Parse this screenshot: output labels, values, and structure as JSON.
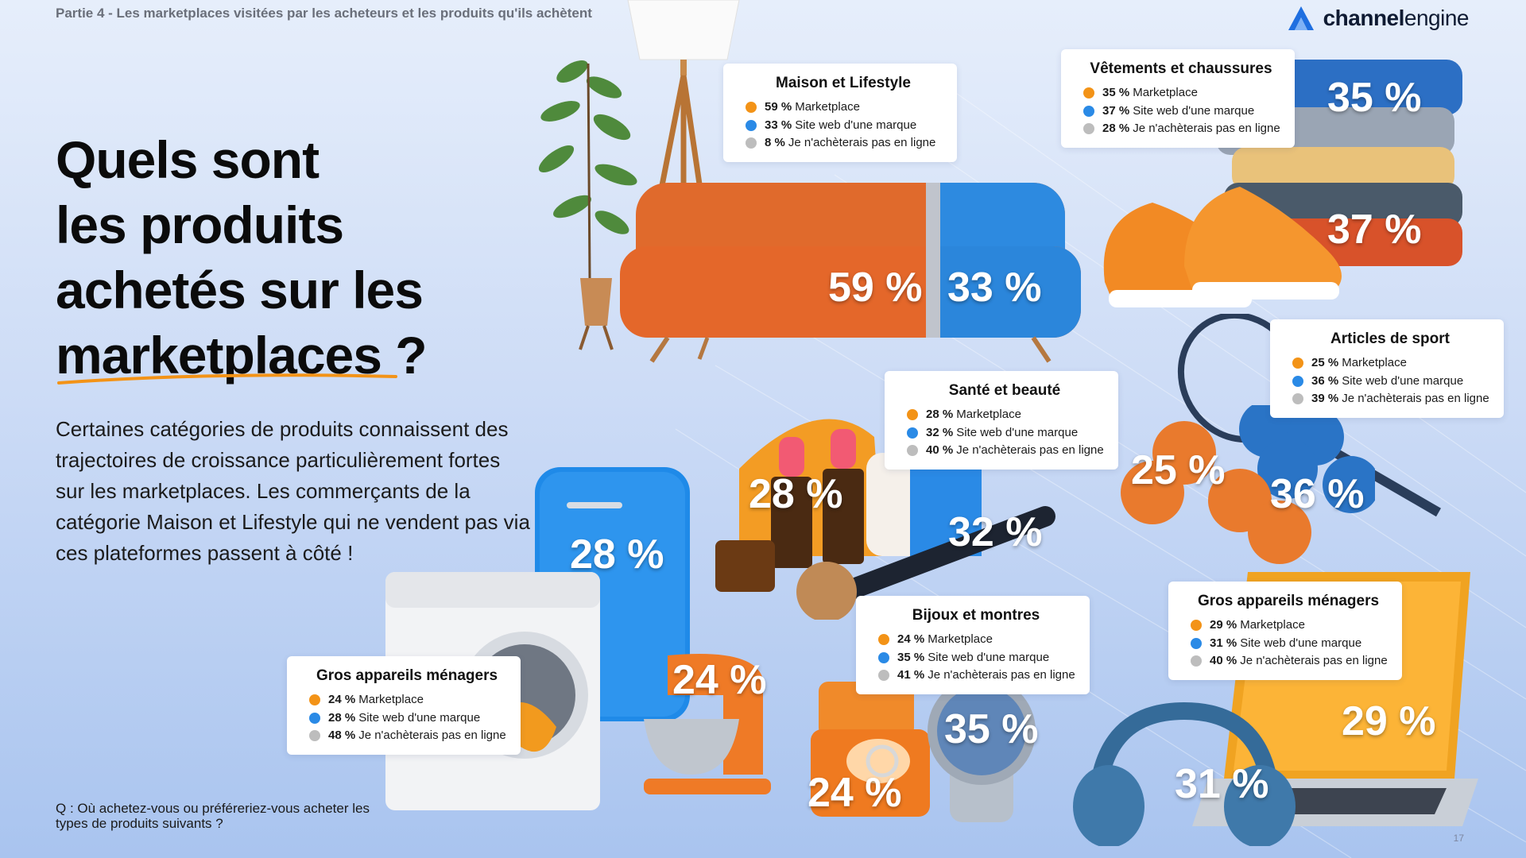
{
  "header": {
    "breadcrumb": "Partie 4 - Les marketplaces visitées par les acheteurs et les produits qu'ils achètent",
    "logo_bold": "channel",
    "logo_light": "engine"
  },
  "headline": {
    "line1": "Quels sont",
    "line2": "les produits",
    "line3": "achetés sur les",
    "line4": "marketplaces ?"
  },
  "intro": "Certaines catégories de produits connaissent des trajectoires de croissance particulièrement fortes sur les marketplaces. Les commerçants de la catégorie Maison et Lifestyle qui ne vendent pas via ces plateformes passent à côté !",
  "footer": {
    "question": "Q : Où achetez-vous ou préféreriez-vous acheter les types de produits suivants ?",
    "page_number": "17"
  },
  "colors": {
    "marketplace": "#f39317",
    "brand_site": "#2a8ae6",
    "not_online": "#bdbdbd"
  },
  "cards": {
    "maison": {
      "title": "Maison et Lifestyle",
      "rows": [
        {
          "value": "59 %",
          "label": "Marketplace"
        },
        {
          "value": "33 %",
          "label": "Site web d'une marque"
        },
        {
          "value": "8 %",
          "label": "Je n'achèterais pas en ligne"
        }
      ]
    },
    "vetements": {
      "title": "Vêtements et chaussures",
      "rows": [
        {
          "value": "35 %",
          "label": "Marketplace"
        },
        {
          "value": "37 %",
          "label": "Site web d'une marque"
        },
        {
          "value": "28 %",
          "label": "Je n'achèterais pas en ligne"
        }
      ]
    },
    "sport": {
      "title": "Articles de sport",
      "rows": [
        {
          "value": "25 %",
          "label": "Marketplace"
        },
        {
          "value": "36 %",
          "label": "Site web d'une marque"
        },
        {
          "value": "39 %",
          "label": "Je n'achèterais pas en ligne"
        }
      ]
    },
    "sante": {
      "title": "Santé et beauté",
      "rows": [
        {
          "value": "28 %",
          "label": "Marketplace"
        },
        {
          "value": "32 %",
          "label": "Site web d'une marque"
        },
        {
          "value": "40 %",
          "label": "Je n'achèterais pas en ligne"
        }
      ]
    },
    "bijoux": {
      "title": "Bijoux et montres",
      "rows": [
        {
          "value": "24 %",
          "label": "Marketplace"
        },
        {
          "value": "35 %",
          "label": "Site web d'une marque"
        },
        {
          "value": "41 %",
          "label": "Je n'achèterais pas en ligne"
        }
      ]
    },
    "gros_left": {
      "title": "Gros appareils ménagers",
      "rows": [
        {
          "value": "24 %",
          "label": "Marketplace"
        },
        {
          "value": "28 %",
          "label": "Site web d'une marque"
        },
        {
          "value": "48 %",
          "label": "Je n'achèterais pas en ligne"
        }
      ]
    },
    "gros_right": {
      "title": "Gros appareils ménagers",
      "rows": [
        {
          "value": "29 %",
          "label": "Marketplace"
        },
        {
          "value": "31 %",
          "label": "Site web d'une marque"
        },
        {
          "value": "40 %",
          "label": "Je n'achèterais pas en ligne"
        }
      ]
    }
  },
  "overlays": {
    "sofa_marketplace": "59 %",
    "sofa_brand": "33 %",
    "clothes_marketplace": "35 %",
    "shoes_brand": "37 %",
    "sport_marketplace": "25 %",
    "sport_brand": "36 %",
    "lipstick_marketplace": "28 %",
    "cream_brand": "32 %",
    "fridge_brand": "28 %",
    "mixer_marketplace": "24 %",
    "ring_marketplace": "24 %",
    "watch_brand": "35 %",
    "laptop_marketplace": "29 %",
    "headphones_brand": "31 %"
  }
}
